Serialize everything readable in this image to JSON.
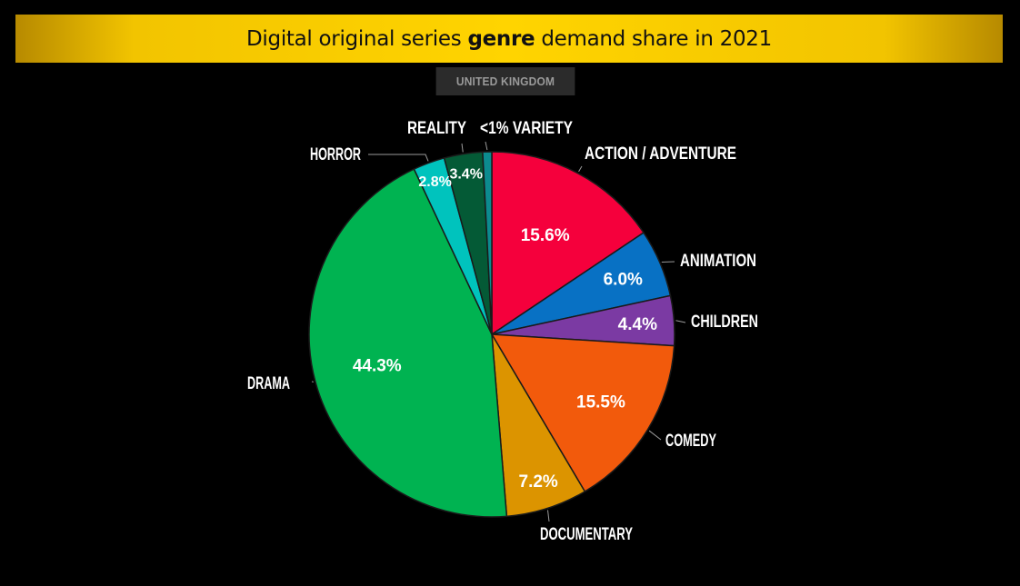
{
  "header": {
    "title_pre": "Digital original series ",
    "title_bold": "genre",
    "title_post": " demand share in 2021",
    "banner_color": "#ffd400"
  },
  "region": "UNITED KINGDOM",
  "chart_data": {
    "type": "pie",
    "title": "Digital original series genre demand share in 2021",
    "subtitle": "UNITED KINGDOM",
    "slices": [
      {
        "label": "ACTION / ADVENTURE",
        "value": 15.6,
        "value_label": "15.6%",
        "color": "#f5003c"
      },
      {
        "label": "ANIMATION",
        "value": 6.0,
        "value_label": "6.0%",
        "color": "#0871c4"
      },
      {
        "label": "CHILDREN",
        "value": 4.4,
        "value_label": "4.4%",
        "color": "#7b3aa3"
      },
      {
        "label": "COMEDY",
        "value": 15.5,
        "value_label": "15.5%",
        "color": "#f25a0c"
      },
      {
        "label": "DOCUMENTARY",
        "value": 7.2,
        "value_label": "7.2%",
        "color": "#dc9400"
      },
      {
        "label": "DRAMA",
        "value": 44.3,
        "value_label": "44.3%",
        "color": "#00b351"
      },
      {
        "label": "HORROR",
        "value": 2.8,
        "value_label": "2.8%",
        "color": "#00c3bd"
      },
      {
        "label": "REALITY",
        "value": 3.4,
        "value_label": "3.4%",
        "color": "#045a36"
      },
      {
        "label": "<1% VARIETY",
        "value": 0.8,
        "value_label": "",
        "color": "#0c8b8f"
      }
    ]
  }
}
